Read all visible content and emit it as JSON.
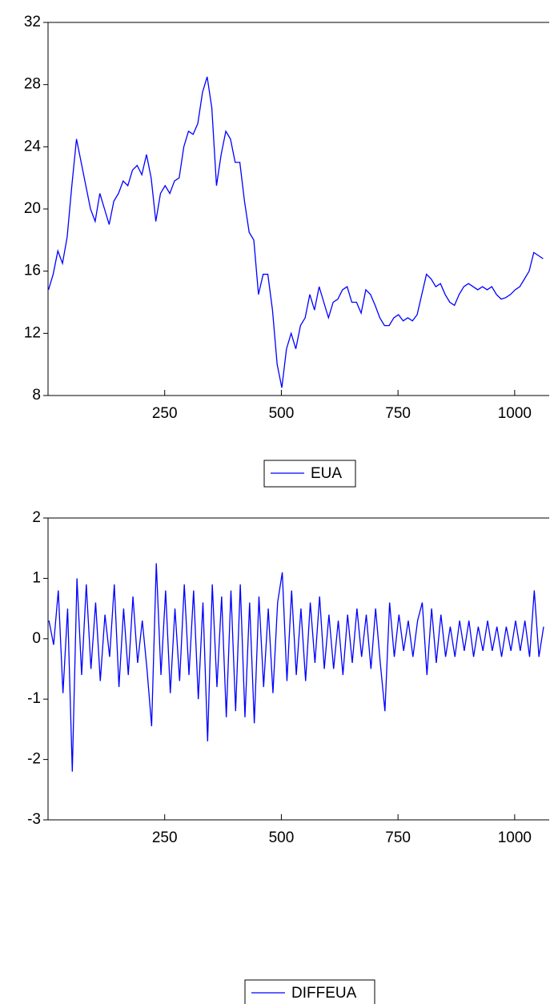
{
  "chart_data": [
    {
      "type": "line",
      "x": [
        1,
        11,
        21,
        31,
        41,
        51,
        61,
        71,
        81,
        91,
        101,
        111,
        121,
        131,
        141,
        151,
        161,
        171,
        181,
        191,
        201,
        211,
        221,
        231,
        241,
        251,
        261,
        271,
        281,
        291,
        301,
        311,
        321,
        331,
        341,
        351,
        361,
        371,
        381,
        391,
        401,
        411,
        421,
        431,
        441,
        451,
        461,
        471,
        481,
        491,
        501,
        511,
        521,
        531,
        541,
        551,
        561,
        571,
        581,
        591,
        601,
        611,
        621,
        631,
        641,
        651,
        661,
        671,
        681,
        691,
        701,
        711,
        721,
        731,
        741,
        751,
        761,
        771,
        781,
        791,
        801,
        811,
        821,
        831,
        841,
        851,
        861,
        871,
        881,
        891,
        901,
        911,
        921,
        931,
        941,
        951,
        961,
        971,
        981,
        991,
        1001,
        1011,
        1021,
        1031,
        1041,
        1051,
        1061
      ],
      "series": [
        {
          "name": "EUA",
          "color": "#0000ff",
          "values": [
            14.8,
            15.8,
            17.3,
            16.5,
            18.2,
            21.5,
            24.5,
            23.0,
            21.5,
            20.0,
            19.2,
            21.0,
            20.0,
            19.0,
            20.5,
            21.0,
            21.8,
            21.5,
            22.5,
            22.8,
            22.2,
            23.5,
            22.0,
            19.2,
            21.0,
            21.5,
            21.0,
            21.8,
            22.0,
            24.0,
            25.0,
            24.8,
            25.5,
            27.5,
            28.5,
            26.5,
            21.5,
            23.5,
            25.0,
            24.5,
            23.0,
            23.0,
            20.5,
            18.5,
            18.0,
            14.5,
            15.8,
            15.8,
            13.5,
            10.0,
            8.5,
            11.0,
            12.0,
            11.0,
            12.5,
            13.0,
            14.5,
            13.5,
            15.0,
            14.0,
            13.0,
            14.0,
            14.2,
            14.8,
            15.0,
            14.0,
            14.0,
            13.3,
            14.8,
            14.5,
            13.8,
            13.0,
            12.5,
            12.5,
            13.0,
            13.2,
            12.8,
            13.0,
            12.8,
            13.2,
            14.5,
            15.8,
            15.5,
            15.0,
            15.2,
            14.5,
            14.0,
            13.8,
            14.5,
            15.0,
            15.2,
            15.0,
            14.8,
            15.0,
            14.8,
            15.0,
            14.5,
            14.2,
            14.3,
            14.5,
            14.8,
            15.0,
            15.5,
            16.0,
            17.2,
            17.0,
            16.8
          ]
        }
      ],
      "xlim": [
        0,
        1074
      ],
      "xticks": [
        250,
        500,
        750,
        1000
      ],
      "ylim": [
        8,
        32
      ],
      "yticks": [
        8,
        12,
        16,
        20,
        24,
        28,
        32
      ]
    },
    {
      "type": "line",
      "x": [
        2,
        12,
        22,
        32,
        42,
        52,
        62,
        72,
        82,
        92,
        102,
        112,
        122,
        132,
        142,
        152,
        162,
        172,
        182,
        192,
        202,
        212,
        222,
        232,
        242,
        252,
        262,
        272,
        282,
        292,
        302,
        312,
        322,
        332,
        342,
        352,
        362,
        372,
        382,
        392,
        402,
        412,
        422,
        432,
        442,
        452,
        462,
        472,
        482,
        492,
        502,
        512,
        522,
        532,
        542,
        552,
        562,
        572,
        582,
        592,
        602,
        612,
        622,
        632,
        642,
        652,
        662,
        672,
        682,
        692,
        702,
        712,
        722,
        732,
        742,
        752,
        762,
        772,
        782,
        792,
        802,
        812,
        822,
        832,
        842,
        852,
        862,
        872,
        882,
        892,
        902,
        912,
        922,
        932,
        942,
        952,
        962,
        972,
        982,
        992,
        1002,
        1012,
        1022,
        1032,
        1042,
        1052,
        1062
      ],
      "series": [
        {
          "name": "DIFFEUA",
          "color": "#0000ff",
          "values": [
            0.3,
            -0.1,
            0.8,
            -0.9,
            0.5,
            -2.2,
            1.0,
            -0.6,
            0.9,
            -0.5,
            0.6,
            -0.7,
            0.4,
            -0.3,
            0.9,
            -0.8,
            0.5,
            -0.6,
            0.7,
            -0.4,
            0.3,
            -0.5,
            -1.45,
            1.25,
            -0.6,
            0.8,
            -0.9,
            0.5,
            -0.7,
            0.9,
            -0.6,
            0.8,
            -1.0,
            0.6,
            -1.7,
            0.9,
            -0.8,
            0.7,
            -1.3,
            0.8,
            -1.2,
            0.9,
            -1.3,
            0.6,
            -1.4,
            0.7,
            -0.8,
            0.5,
            -0.9,
            0.6,
            1.1,
            -0.7,
            0.8,
            -0.6,
            0.5,
            -0.7,
            0.6,
            -0.4,
            0.7,
            -0.5,
            0.4,
            -0.5,
            0.3,
            -0.6,
            0.4,
            -0.4,
            0.5,
            -0.3,
            0.4,
            -0.5,
            0.5,
            -0.4,
            -1.2,
            0.6,
            -0.3,
            0.4,
            -0.2,
            0.3,
            -0.3,
            0.3,
            0.6,
            -0.6,
            0.5,
            -0.4,
            0.4,
            -0.3,
            0.2,
            -0.3,
            0.3,
            -0.2,
            0.3,
            -0.3,
            0.2,
            -0.2,
            0.3,
            -0.2,
            0.2,
            -0.3,
            0.2,
            -0.2,
            0.3,
            -0.2,
            0.3,
            -0.3,
            0.8,
            -0.3,
            0.2
          ]
        }
      ],
      "xlim": [
        0,
        1074
      ],
      "xticks": [
        250,
        500,
        750,
        1000
      ],
      "ylim": [
        -3,
        2
      ],
      "yticks": [
        -3,
        -2,
        -1,
        0,
        1,
        2
      ]
    }
  ]
}
